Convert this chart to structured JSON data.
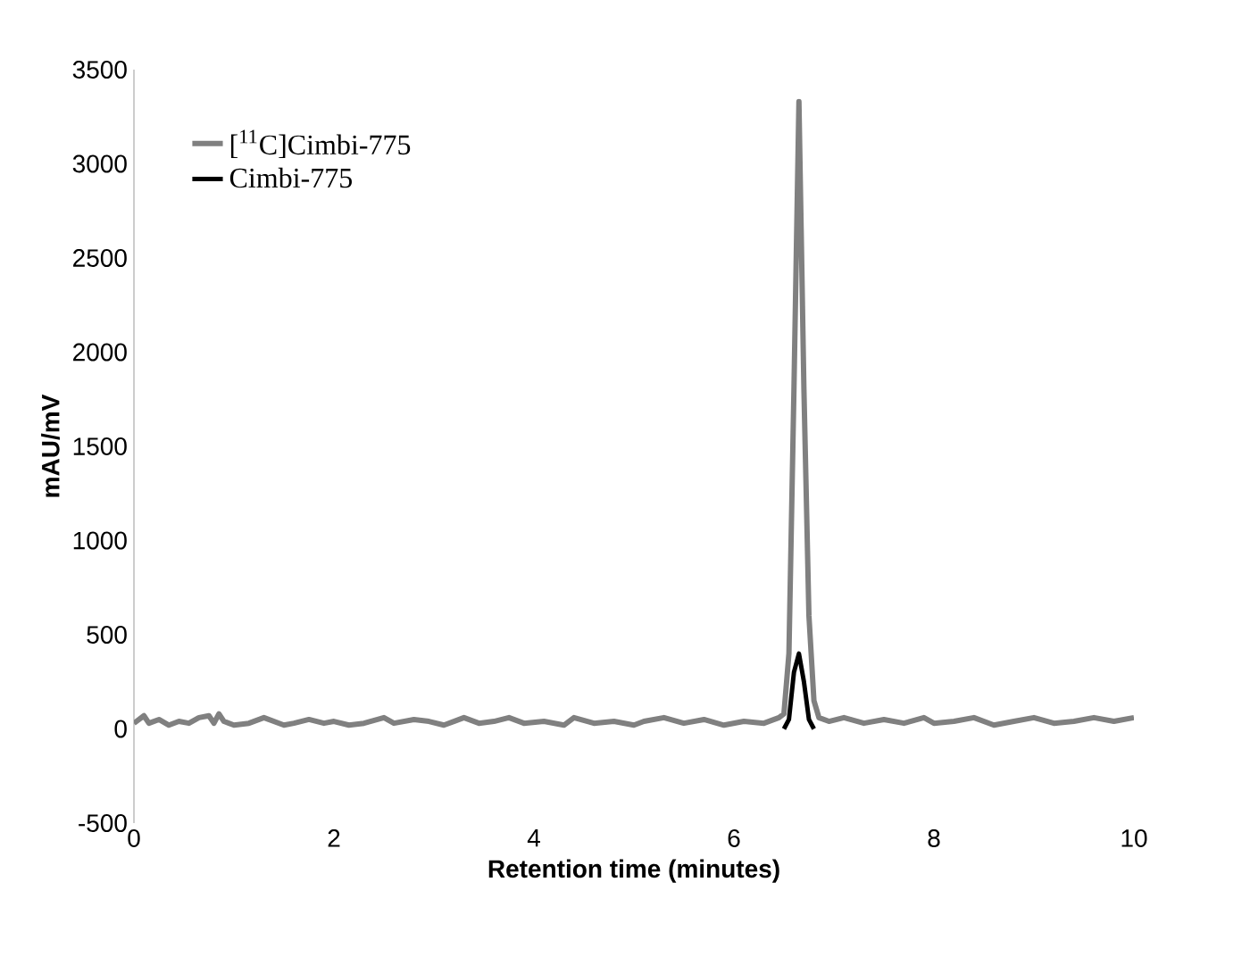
{
  "chart_data": {
    "type": "line",
    "xlabel": "Retention time (minutes)",
    "ylabel": "mAU/mV",
    "xlim": [
      0,
      10
    ],
    "ylim": [
      -500,
      3500
    ],
    "xticks": [
      0,
      2,
      4,
      6,
      8,
      10
    ],
    "yticks": [
      -500,
      0,
      500,
      1000,
      1500,
      2000,
      2500,
      3000,
      3500
    ],
    "grid": false,
    "legend": "top left",
    "marker": "none",
    "line_style": "solid",
    "series": [
      {
        "name": "[$^{11}$C]Cimbi-775",
        "color": "#808080",
        "x": [
          0,
          0.1,
          0.15,
          0.25,
          0.35,
          0.45,
          0.55,
          0.65,
          0.75,
          0.8,
          0.85,
          0.9,
          1.0,
          1.15,
          1.3,
          1.5,
          1.6,
          1.75,
          1.9,
          2.0,
          2.15,
          2.3,
          2.5,
          2.6,
          2.8,
          2.95,
          3.1,
          3.3,
          3.45,
          3.6,
          3.75,
          3.9,
          4.1,
          4.3,
          4.4,
          4.6,
          4.8,
          5.0,
          5.1,
          5.3,
          5.5,
          5.7,
          5.9,
          6.1,
          6.3,
          6.45,
          6.5,
          6.55,
          6.6,
          6.65,
          6.7,
          6.75,
          6.8,
          6.85,
          6.95,
          7.1,
          7.3,
          7.5,
          7.7,
          7.9,
          8.0,
          8.2,
          8.4,
          8.6,
          8.8,
          9.0,
          9.2,
          9.4,
          9.6,
          9.8,
          10.0
        ],
        "values": [
          30,
          70,
          30,
          50,
          20,
          40,
          30,
          60,
          70,
          30,
          80,
          40,
          20,
          30,
          60,
          20,
          30,
          50,
          30,
          40,
          20,
          30,
          60,
          30,
          50,
          40,
          20,
          60,
          30,
          40,
          60,
          30,
          40,
          20,
          60,
          30,
          40,
          20,
          40,
          60,
          30,
          50,
          20,
          40,
          30,
          60,
          80,
          400,
          1800,
          3330,
          1800,
          600,
          150,
          60,
          40,
          60,
          30,
          50,
          30,
          60,
          30,
          40,
          60,
          20,
          40,
          60,
          30,
          40,
          60,
          40,
          60
        ]
      },
      {
        "name": "Cimbi-775",
        "color": "#000000",
        "x": [
          6.5,
          6.55,
          6.6,
          6.65,
          6.7,
          6.75,
          6.8
        ],
        "values": [
          0,
          50,
          300,
          400,
          250,
          50,
          0
        ]
      }
    ]
  }
}
